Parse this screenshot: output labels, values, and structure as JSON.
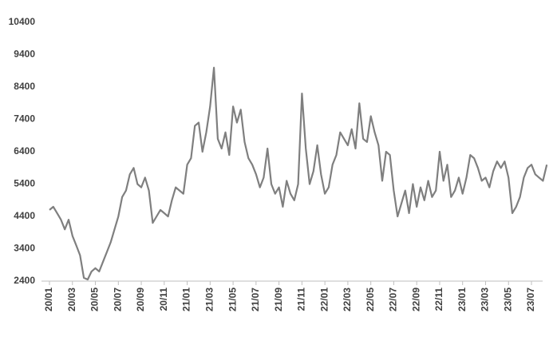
{
  "chart_data": {
    "type": "line",
    "categories": [
      "20/01",
      null,
      null,
      null,
      null,
      null,
      "20/03",
      null,
      null,
      null,
      null,
      null,
      "20/05",
      null,
      null,
      null,
      null,
      null,
      "20/07",
      null,
      null,
      null,
      null,
      null,
      "20/09",
      null,
      null,
      null,
      null,
      null,
      "20/11",
      null,
      null,
      null,
      null,
      null,
      "21/01",
      null,
      null,
      null,
      null,
      null,
      "21/03",
      null,
      null,
      null,
      null,
      null,
      "21/05",
      null,
      null,
      null,
      null,
      null,
      "21/07",
      null,
      null,
      null,
      null,
      null,
      "21/09",
      null,
      null,
      null,
      null,
      null,
      "21/11",
      null,
      null,
      null,
      null,
      null,
      "22/01",
      null,
      null,
      null,
      null,
      null,
      "22/03",
      null,
      null,
      null,
      null,
      null,
      "22/05",
      null,
      null,
      null,
      null,
      null,
      "22/07",
      null,
      null,
      null,
      null,
      null,
      "22/09",
      null,
      null,
      null,
      null,
      null,
      "22/11",
      null,
      null,
      null,
      null,
      null,
      "23/01",
      null,
      null,
      null,
      null,
      null,
      "23/03",
      null,
      null,
      null,
      null,
      null,
      "23/05",
      null,
      null,
      null,
      null,
      null,
      "23/07",
      null,
      null,
      null,
      null
    ],
    "values": [
      4600,
      4700,
      4500,
      4300,
      4000,
      4300,
      3800,
      3500,
      3200,
      2500,
      2450,
      2700,
      2800,
      2700,
      3000,
      3300,
      3600,
      4000,
      4400,
      5000,
      5200,
      5700,
      5900,
      5400,
      5300,
      5600,
      5200,
      4200,
      4400,
      4600,
      4500,
      4400,
      4900,
      5300,
      5200,
      5100,
      6000,
      6200,
      7200,
      7300,
      6400,
      7000,
      7800,
      9000,
      6800,
      6500,
      7000,
      6300,
      7800,
      7300,
      7700,
      6700,
      6200,
      6000,
      5700,
      5300,
      5600,
      6500,
      5400,
      5100,
      5300,
      4700,
      5500,
      5100,
      4900,
      5400,
      8200,
      6500,
      5400,
      5800,
      6600,
      5700,
      5100,
      5300,
      6000,
      6300,
      7000,
      6800,
      6600,
      7100,
      6500,
      7900,
      6800,
      6700,
      7500,
      7000,
      6600,
      5500,
      6400,
      6300,
      5200,
      4400,
      4800,
      5200,
      4500,
      5400,
      4700,
      5300,
      4900,
      5500,
      5000,
      5200,
      6400,
      5500,
      6000,
      5000,
      5200,
      5600,
      5100,
      5600,
      6300,
      6200,
      5900,
      5500,
      5600,
      5300,
      5800,
      6100,
      5900,
      6100,
      5600,
      4500,
      4700,
      5000,
      5600,
      5900,
      6000,
      5700,
      5600,
      5500,
      6000
    ],
    "color": "#7f7f7f",
    "ylim": [
      2400,
      10400
    ],
    "yticks": [
      2400,
      3400,
      4400,
      5400,
      6400,
      7400,
      8400,
      9400,
      10400
    ]
  }
}
